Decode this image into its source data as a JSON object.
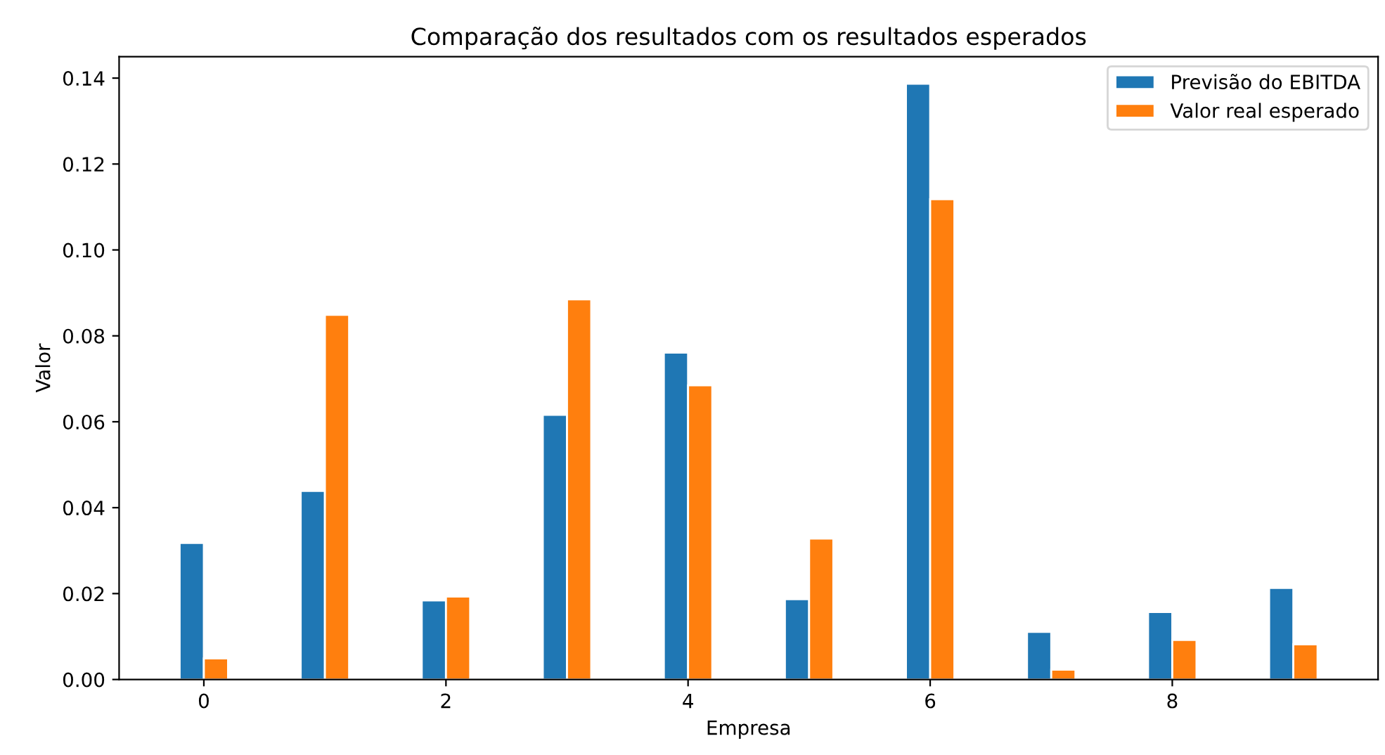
{
  "chart_data": {
    "type": "bar",
    "title": "Comparação dos resultados com os resultados esperados",
    "xlabel": "Empresa",
    "ylabel": "Valor",
    "x": [
      0,
      1,
      2,
      3,
      4,
      5,
      6,
      7,
      8,
      9
    ],
    "series": [
      {
        "name": "Previsão do EBITDA",
        "color": "#1f77b4",
        "values": [
          0.0318,
          0.0439,
          0.0184,
          0.0616,
          0.0761,
          0.0187,
          0.1387,
          0.0111,
          0.0157,
          0.0213
        ]
      },
      {
        "name": "Valor real esperado",
        "color": "#ff7f0e",
        "values": [
          0.0049,
          0.0849,
          0.0193,
          0.0885,
          0.0685,
          0.0328,
          0.1118,
          0.0023,
          0.0092,
          0.0082
        ]
      }
    ],
    "xlim": [
      -0.7,
      9.7
    ],
    "xticks": [
      0,
      2,
      4,
      6,
      8
    ],
    "ylim": [
      0,
      0.145
    ],
    "yticks": [
      {
        "value": 0,
        "label": "0.00"
      },
      {
        "value": 0.02,
        "label": "0.02"
      },
      {
        "value": 0.04,
        "label": "0.04"
      },
      {
        "value": 0.06,
        "label": "0.06"
      },
      {
        "value": 0.08,
        "label": "0.08"
      },
      {
        "value": 0.1,
        "label": "0.10"
      },
      {
        "value": 0.12,
        "label": "0.12"
      },
      {
        "value": 0.14,
        "label": "0.14"
      }
    ],
    "legend": "top right",
    "grid": false
  }
}
